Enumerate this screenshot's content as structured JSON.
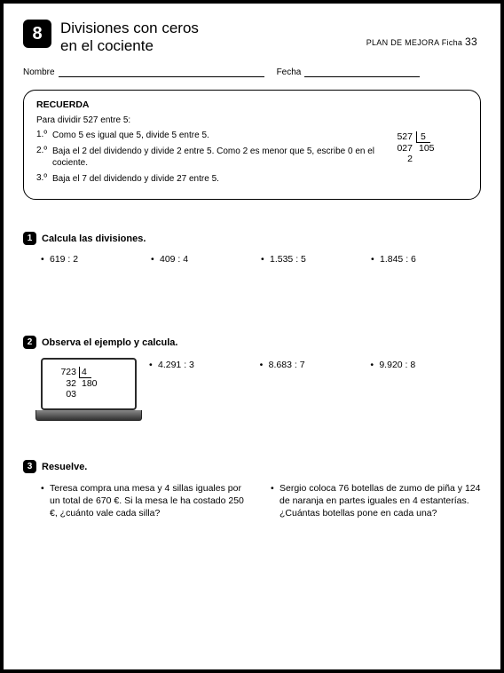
{
  "header": {
    "unit_number": "8",
    "title_line1": "Divisiones con ceros",
    "title_line2": "en el cociente",
    "plan_label": "PLAN DE MEJORA  Ficha",
    "plan_number": "33"
  },
  "fields": {
    "nombre_label": "Nombre",
    "fecha_label": "Fecha"
  },
  "recuerda": {
    "title": "RECUERDA",
    "intro": "Para dividir 527 entre 5:",
    "steps": [
      {
        "num": "1.º",
        "text": "Como 5 es igual que 5, divide 5 entre 5."
      },
      {
        "num": "2.º",
        "text": "Baja el 2 del dividendo y divide 2 entre 5. Como 2 es menor que 5, escribe 0 en el cociente."
      },
      {
        "num": "3.º",
        "text": "Baja el 7 del dividendo y divide 27 entre 5."
      }
    ],
    "example": {
      "dividend": "527",
      "divisor": "5",
      "line2_left": "027",
      "quotient": "105",
      "line3_left": "2"
    }
  },
  "ex1": {
    "num": "1",
    "title": "Calcula las divisiones.",
    "items": [
      "619 : 2",
      "409 : 4",
      "1.535 : 5",
      "1.845 : 6"
    ]
  },
  "ex2": {
    "num": "2",
    "title": "Observa el ejemplo y calcula.",
    "screen": {
      "dividend": "723",
      "divisor": "4",
      "l2": "32",
      "quotient": "180",
      "l3": "03"
    },
    "items": [
      "4.291 : 3",
      "8.683 : 7",
      "9.920 : 8"
    ]
  },
  "ex3": {
    "num": "3",
    "title": "Resuelve.",
    "problems": [
      "Teresa compra una mesa y 4 sillas iguales por un total de 670 €. Si la mesa le ha costado 250 €, ¿cuánto vale cada silla?",
      "Sergio coloca 76 botellas de zumo de piña y 124 de naranja en partes iguales en 4 estanterías. ¿Cuántas botellas pone en cada una?"
    ]
  }
}
